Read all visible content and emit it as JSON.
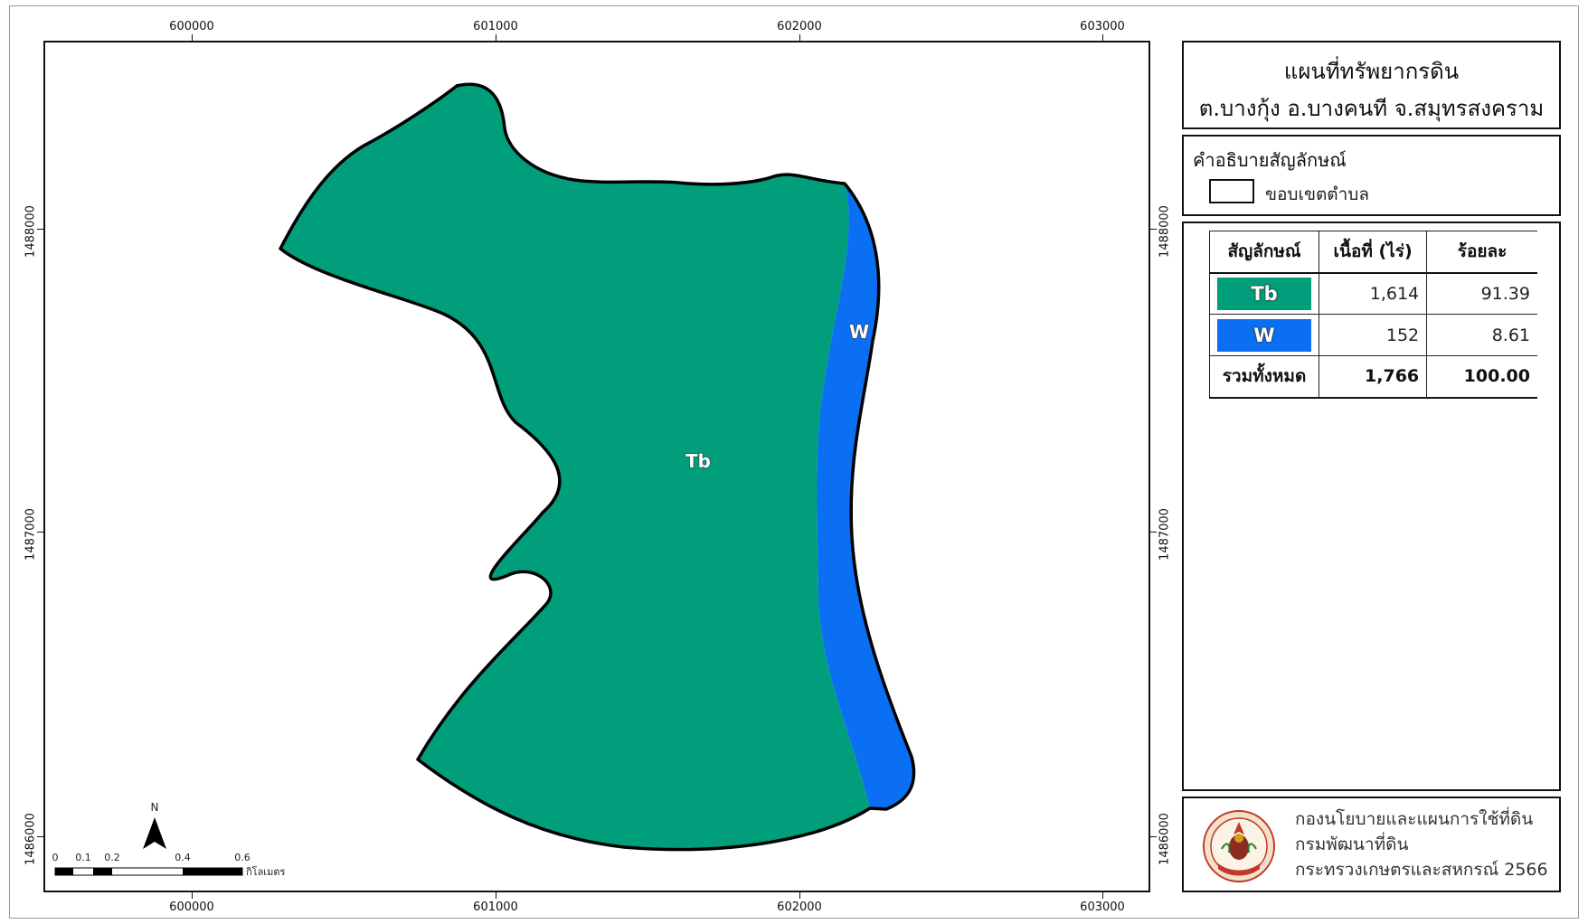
{
  "map": {
    "title_line1": "แผนที่ทรัพยากรดิน",
    "title_line2": "ต.บางกุ้ง อ.บางคนที จ.สมุทรสงคราม",
    "coordinates": {
      "x_ticks": [
        "600000",
        "601000",
        "602000",
        "603000"
      ],
      "y_ticks": [
        "1488000",
        "1487000",
        "1486000"
      ]
    },
    "labels": {
      "tb": "Tb",
      "w": "W"
    },
    "north_arrow": {
      "letter": "N",
      "icon": "north-arrow-icon"
    },
    "scale_bar": {
      "tick_labels": [
        "0",
        "0.1",
        "0.2",
        "0.4",
        "0.6"
      ],
      "unit": "กิโลเมตร"
    },
    "colors": {
      "tb": "#009e7a",
      "w": "#0a6ff2",
      "boundary": "#000000"
    }
  },
  "legend": {
    "title": "คำอธิบายสัญลักษณ์",
    "items": [
      {
        "label": "ขอบเขตตำบล",
        "icon": "boundary-outline-icon"
      }
    ]
  },
  "area_table": {
    "headers": [
      "สัญลักษณ์",
      "เนื้อที่ (ไร่)",
      "ร้อยละ"
    ],
    "rows": [
      {
        "symbol": "Tb",
        "area": "1,614",
        "percent": "91.39",
        "color": "#009e7a"
      },
      {
        "symbol": "W",
        "area": "152",
        "percent": "8.61",
        "color": "#0a6ff2"
      }
    ],
    "total": {
      "label": "รวมทั้งหมด",
      "area": "1,766",
      "percent": "100.00"
    }
  },
  "agency": {
    "line1": "กองนโยบายและแผนการใช้ที่ดิน",
    "line2": "กรมพัฒนาที่ดิน",
    "line3": "กระทรวงเกษตรและสหกรณ์ 2566",
    "seal_icon": "land-development-department-seal"
  }
}
